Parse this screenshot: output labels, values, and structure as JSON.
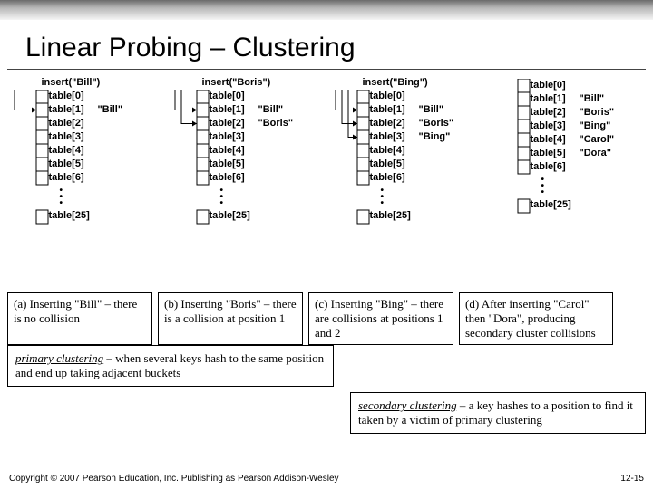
{
  "title": "Linear Probing – Clustering",
  "slots": [
    "table[0]",
    "table[1]",
    "table[2]",
    "table[3]",
    "table[4]",
    "table[5]",
    "table[6]"
  ],
  "last_slot": "table[25]",
  "diagrams": [
    {
      "insert": "insert(\"Bill\")",
      "values": {
        "1": "\"Bill\""
      },
      "arrows": [
        1
      ]
    },
    {
      "insert": "insert(\"Boris\")",
      "values": {
        "1": "\"Bill\"",
        "2": "\"Boris\""
      },
      "arrows": [
        1,
        2
      ]
    },
    {
      "insert": "insert(\"Bing\")",
      "values": {
        "1": "\"Bill\"",
        "2": "\"Boris\"",
        "3": "\"Bing\""
      },
      "arrows": [
        1,
        2,
        3
      ]
    },
    {
      "insert": "",
      "values": {
        "1": "\"Bill\"",
        "2": "\"Boris\"",
        "3": "\"Bing\"",
        "4": "\"Carol\"",
        "5": "\"Dora\""
      },
      "arrows": []
    }
  ],
  "captions": [
    "(a) Inserting \"Bill\" – there is no collision",
    "(b) Inserting \"Boris\" – there is a collision at position 1",
    "(c) Inserting \"Bing\" – there are collisions at positions 1 and 2",
    "(d) After inserting \"Carol\" then \"Dora\", producing secondary cluster collisions"
  ],
  "def1_pre": "primary clustering",
  "def1_post": " – when several keys hash to the same position and end up taking adjacent buckets",
  "def2_pre": "secondary clustering",
  "def2_post": " – a key hashes to a position to find it taken by a victim of primary clustering",
  "copyright": "Copyright © 2007 Pearson Education, Inc. Publishing as Pearson Addison-Wesley",
  "pagenum": "12-15",
  "colors": {
    "box_stroke": "#000000",
    "arrow": "#000000"
  }
}
